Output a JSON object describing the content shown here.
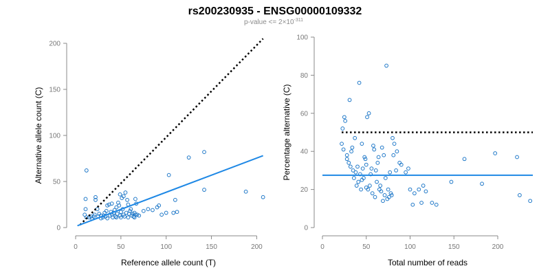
{
  "title": "rs200230935 - ENSG00000109332",
  "subtitle": {
    "prefix": "p-value <= 2×10",
    "exponent": "-311"
  },
  "colors": {
    "points": "#1f78c8",
    "fit": "#1e88e5",
    "reference": "#000000"
  },
  "chart_data": [
    {
      "type": "scatter",
      "xlabel": "Reference allele count (T)",
      "ylabel": "Alternative allele count (C)",
      "xlim": [
        0,
        205
      ],
      "ylim": [
        0,
        200
      ],
      "xticks": [
        0,
        50,
        100,
        150,
        200
      ],
      "yticks": [
        0,
        50,
        100,
        150,
        200
      ],
      "reference_line": {
        "style": "dotted",
        "points": [
          [
            5,
            3
          ],
          [
            207,
            205
          ]
        ]
      },
      "fit_line": {
        "style": "solid",
        "points": [
          [
            2,
            2
          ],
          [
            207,
            78
          ]
        ]
      },
      "points": [
        [
          12,
          62
        ],
        [
          11,
          31
        ],
        [
          11,
          20
        ],
        [
          10,
          14
        ],
        [
          12,
          11
        ],
        [
          15,
          11
        ],
        [
          17,
          12
        ],
        [
          18,
          10
        ],
        [
          20,
          12
        ],
        [
          21,
          14
        ],
        [
          22,
          30
        ],
        [
          22,
          33
        ],
        [
          24,
          20
        ],
        [
          25,
          12
        ],
        [
          26,
          15
        ],
        [
          28,
          10
        ],
        [
          28,
          13
        ],
        [
          30,
          11
        ],
        [
          31,
          13
        ],
        [
          32,
          16
        ],
        [
          33,
          12
        ],
        [
          34,
          18
        ],
        [
          35,
          24
        ],
        [
          35,
          10
        ],
        [
          37,
          25
        ],
        [
          38,
          13
        ],
        [
          39,
          17
        ],
        [
          40,
          14
        ],
        [
          40,
          26
        ],
        [
          41,
          11
        ],
        [
          42,
          16
        ],
        [
          43,
          19
        ],
        [
          44,
          12
        ],
        [
          45,
          22
        ],
        [
          45,
          11
        ],
        [
          46,
          15
        ],
        [
          47,
          27
        ],
        [
          48,
          24
        ],
        [
          49,
          36
        ],
        [
          49,
          13
        ],
        [
          50,
          11
        ],
        [
          50,
          17
        ],
        [
          51,
          32
        ],
        [
          52,
          20
        ],
        [
          53,
          34
        ],
        [
          53,
          14
        ],
        [
          54,
          12
        ],
        [
          55,
          38
        ],
        [
          56,
          16
        ],
        [
          57,
          30
        ],
        [
          58,
          25
        ],
        [
          58,
          11
        ],
        [
          59,
          15
        ],
        [
          60,
          18
        ],
        [
          61,
          20
        ],
        [
          62,
          13
        ],
        [
          63,
          15
        ],
        [
          64,
          12
        ],
        [
          65,
          16
        ],
        [
          65,
          11
        ],
        [
          66,
          14
        ],
        [
          66,
          31
        ],
        [
          67,
          26
        ],
        [
          68,
          14
        ],
        [
          70,
          13
        ],
        [
          75,
          18
        ],
        [
          80,
          20
        ],
        [
          85,
          19
        ],
        [
          90,
          22
        ],
        [
          92,
          24
        ],
        [
          95,
          14
        ],
        [
          100,
          16
        ],
        [
          103,
          57
        ],
        [
          108,
          16
        ],
        [
          110,
          30
        ],
        [
          112,
          17
        ],
        [
          125,
          76
        ],
        [
          142,
          82
        ],
        [
          142,
          41
        ],
        [
          188,
          39
        ],
        [
          207,
          33
        ]
      ]
    },
    {
      "type": "scatter",
      "xlabel": "Total number of reads",
      "ylabel": "Percentage alternative (C)",
      "xlim": [
        0,
        240
      ],
      "ylim": [
        0,
        100
      ],
      "xticks": [
        0,
        50,
        100,
        150,
        200
      ],
      "yticks": [
        0,
        20,
        40,
        60,
        80,
        100
      ],
      "reference_line": {
        "style": "dotted",
        "points": [
          [
            22,
            50
          ],
          [
            240,
            50
          ]
        ]
      },
      "fit_line": {
        "style": "solid",
        "points": [
          [
            0,
            27.5
          ],
          [
            240,
            27.5
          ]
        ]
      },
      "points": [
        [
          22,
          44
        ],
        [
          23,
          52
        ],
        [
          24,
          41
        ],
        [
          25,
          58
        ],
        [
          26,
          56
        ],
        [
          28,
          38
        ],
        [
          28,
          36
        ],
        [
          30,
          34
        ],
        [
          31,
          67
        ],
        [
          32,
          32
        ],
        [
          33,
          40
        ],
        [
          34,
          42
        ],
        [
          35,
          30
        ],
        [
          36,
          26
        ],
        [
          37,
          47
        ],
        [
          38,
          29
        ],
        [
          39,
          22
        ],
        [
          40,
          32
        ],
        [
          41,
          24
        ],
        [
          42,
          76
        ],
        [
          43,
          28
        ],
        [
          44,
          20
        ],
        [
          45,
          25
        ],
        [
          45,
          44
        ],
        [
          46,
          31
        ],
        [
          47,
          26
        ],
        [
          48,
          37
        ],
        [
          49,
          36
        ],
        [
          50,
          33
        ],
        [
          50,
          21
        ],
        [
          51,
          58
        ],
        [
          52,
          20
        ],
        [
          53,
          60
        ],
        [
          54,
          22
        ],
        [
          55,
          28
        ],
        [
          56,
          31
        ],
        [
          57,
          18
        ],
        [
          58,
          43
        ],
        [
          59,
          41
        ],
        [
          60,
          16
        ],
        [
          61,
          30
        ],
        [
          62,
          24
        ],
        [
          63,
          34
        ],
        [
          64,
          37
        ],
        [
          65,
          20
        ],
        [
          66,
          22
        ],
        [
          67,
          19
        ],
        [
          68,
          42
        ],
        [
          69,
          14
        ],
        [
          70,
          38
        ],
        [
          71,
          17
        ],
        [
          72,
          26
        ],
        [
          73,
          85
        ],
        [
          74,
          15
        ],
        [
          75,
          20
        ],
        [
          76,
          16
        ],
        [
          77,
          29
        ],
        [
          78,
          18
        ],
        [
          79,
          17
        ],
        [
          80,
          47
        ],
        [
          81,
          38
        ],
        [
          82,
          44
        ],
        [
          84,
          30
        ],
        [
          85,
          40
        ],
        [
          88,
          34
        ],
        [
          90,
          33
        ],
        [
          95,
          29
        ],
        [
          98,
          31
        ],
        [
          100,
          20
        ],
        [
          103,
          12
        ],
        [
          105,
          18
        ],
        [
          110,
          20
        ],
        [
          113,
          13
        ],
        [
          115,
          22
        ],
        [
          118,
          19
        ],
        [
          125,
          13
        ],
        [
          130,
          12
        ],
        [
          147,
          24
        ],
        [
          162,
          36
        ],
        [
          182,
          23
        ],
        [
          197,
          39
        ],
        [
          222,
          37
        ],
        [
          225,
          17
        ],
        [
          237,
          14
        ]
      ]
    }
  ]
}
